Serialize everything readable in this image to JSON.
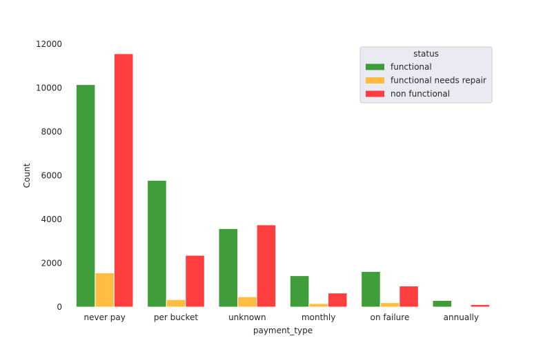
{
  "chart_data": {
    "type": "bar",
    "title": "",
    "xlabel": "payment_type",
    "ylabel": "Count",
    "ylim": [
      0,
      12500
    ],
    "yticks": [
      0,
      2000,
      4000,
      6000,
      8000,
      10000,
      12000
    ],
    "grid": false,
    "legend_title": "status",
    "legend_placement": "top-right",
    "categories": [
      "never pay",
      "per bucket",
      "unknown",
      "monthly",
      "on failure",
      "annually"
    ],
    "series": [
      {
        "name": "functional",
        "color": "#2a9424",
        "values": [
          10150,
          5780,
          3580,
          1430,
          1620,
          300
        ]
      },
      {
        "name": "functional needs repair",
        "color": "#ffb62e",
        "values": [
          1560,
          340,
          470,
          160,
          200,
          0
        ]
      },
      {
        "name": "non functional",
        "color": "#ff2a2a",
        "values": [
          11560,
          2360,
          3750,
          640,
          960,
          110
        ]
      }
    ]
  }
}
